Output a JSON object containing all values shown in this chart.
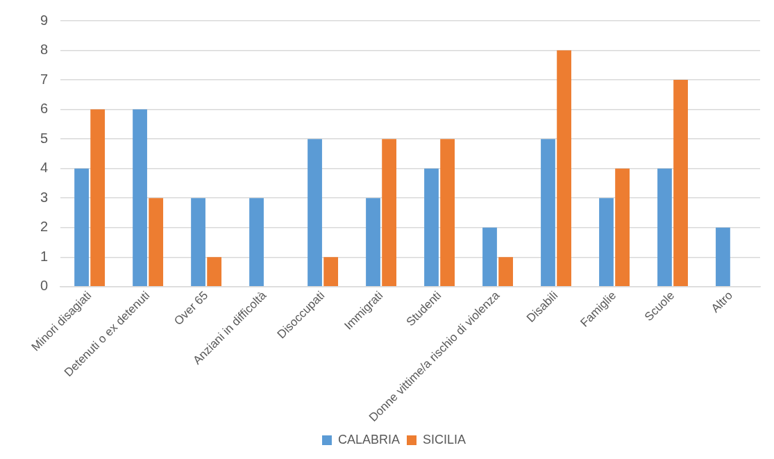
{
  "chart_data": {
    "type": "bar",
    "categories": [
      "Minori disagiati",
      "Detenuti o ex detenuti",
      "Over 65",
      "Anziani in difficoltà",
      "Disoccupati",
      "Immigrati",
      "Studenti",
      "Donne vittime/a rischio di violenza",
      "Disabili",
      "Famiglie",
      "Scuole",
      "Altro"
    ],
    "series": [
      {
        "name": "CALABRIA",
        "color": "#5b9bd5",
        "values": [
          4,
          6,
          3,
          3,
          5,
          3,
          4,
          2,
          5,
          3,
          4,
          2
        ]
      },
      {
        "name": "SICILIA",
        "color": "#ed7d31",
        "values": [
          6,
          3,
          1,
          0,
          1,
          5,
          5,
          1,
          8,
          4,
          7,
          0
        ]
      }
    ],
    "ylim": [
      0,
      9
    ],
    "yticks": [
      0,
      1,
      2,
      3,
      4,
      5,
      6,
      7,
      8,
      9
    ],
    "grid": "y",
    "legend": "bottom"
  }
}
